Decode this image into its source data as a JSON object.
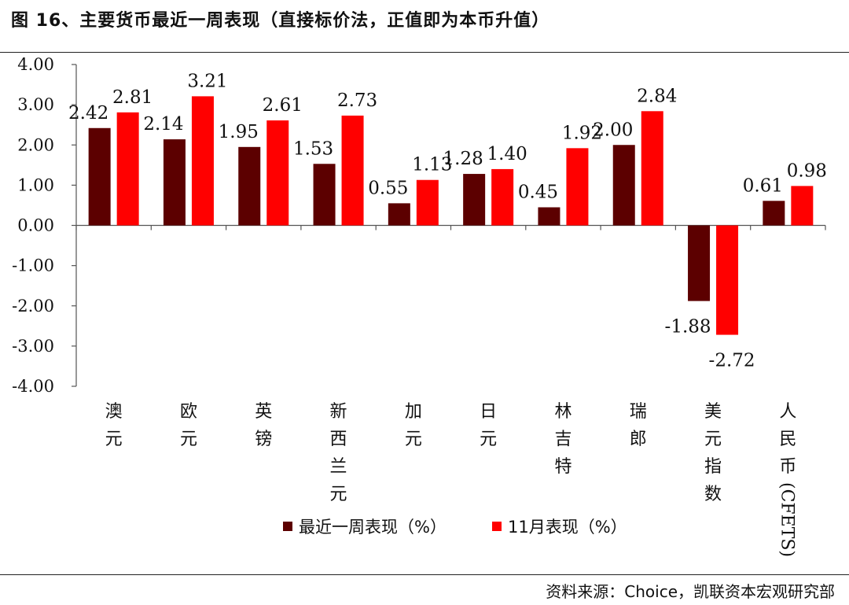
{
  "title": "图 16、主要货币最近一周表现（直接标价法，正值即为本币升值）",
  "source": "资料来源：Choice，凯联资本宏观研究部",
  "colors": {
    "series1": "#5c0000",
    "series2": "#ff0000",
    "axis": "#555555"
  },
  "chart_data": {
    "type": "bar",
    "categories": [
      "澳元",
      "欧元",
      "英镑",
      "新西兰元",
      "加元",
      "日元",
      "林吉特",
      "瑞郎",
      "美元指数",
      "人民币(CFETS)"
    ],
    "series": [
      {
        "name": "最近一周表现（%）",
        "values": [
          2.42,
          2.14,
          1.95,
          1.53,
          0.55,
          1.28,
          0.45,
          2.0,
          -1.88,
          0.61
        ]
      },
      {
        "name": "11月表现（%）",
        "values": [
          2.81,
          3.21,
          2.61,
          2.73,
          1.13,
          1.4,
          1.92,
          2.84,
          -2.72,
          0.98
        ]
      }
    ],
    "ylim": [
      -4,
      4
    ],
    "yticks": [
      "4.00",
      "3.00",
      "2.00",
      "1.00",
      "0.00",
      "-1.00",
      "-2.00",
      "-3.00",
      "-4.00"
    ],
    "legend": "bottom",
    "grid": false
  }
}
